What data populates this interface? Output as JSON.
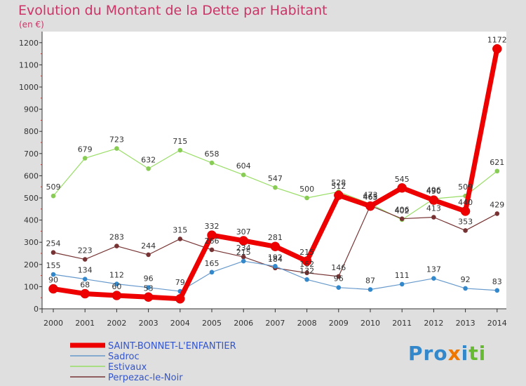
{
  "chart_data": {
    "type": "line",
    "title": "Evolution du Montant de la Dette par Habitant",
    "subtitle": "(en €)",
    "categories": [
      "2000",
      "2001",
      "2002",
      "2003",
      "2004",
      "2005",
      "2006",
      "2007",
      "2008",
      "2009",
      "2010",
      "2011",
      "2012",
      "2013",
      "2014"
    ],
    "y_ticks": [
      "0",
      "100",
      "200",
      "300",
      "400",
      "500",
      "600",
      "700",
      "800",
      "900",
      "1000",
      "1100",
      "1200"
    ],
    "ylim": [
      0,
      1250
    ],
    "grid": false,
    "legend_position": "bottom-left",
    "series": [
      {
        "name": "Estivaux",
        "color": "#99dd66",
        "point_color": "#88cc55",
        "values": [
          509,
          679,
          723,
          632,
          715,
          658,
          604,
          547,
          500,
          528,
          473,
          402,
          496,
          509,
          621
        ],
        "labels": [
          "509",
          "679",
          "723",
          "632",
          "715",
          "658",
          "604",
          "547",
          "500",
          "528",
          "473",
          "402",
          "496",
          "509",
          "621"
        ]
      },
      {
        "name": "Perpezac-le-Noir",
        "color": "#773333",
        "point_color": "#773333",
        "values": [
          254,
          223,
          283,
          244,
          315,
          266,
          234,
          184,
          162,
          146,
          465,
          406,
          413,
          353,
          429
        ],
        "labels": [
          "254",
          "223",
          "283",
          "244",
          "315",
          "266",
          "234",
          "184",
          "162",
          "146",
          "465",
          "406",
          "413",
          "353",
          "429"
        ]
      },
      {
        "name": "Sadroc",
        "color": "#6699cc",
        "point_color": "#3388cc",
        "values": [
          155,
          134,
          112,
          96,
          79,
          165,
          215,
          192,
          132,
          96,
          87,
          111,
          137,
          92,
          83
        ],
        "labels": [
          "155",
          "134",
          "112",
          "96",
          "79",
          "165",
          "215",
          "192",
          "132",
          "96",
          "87",
          "111",
          "137",
          "92",
          "83"
        ]
      },
      {
        "name": "SAINT-BONNET-L'ENFANTIER",
        "color": "#ee0000",
        "point_color": "#ee0000",
        "values": [
          90,
          68,
          60,
          53,
          45,
          332,
          307,
          281,
          215,
          512,
          463,
          545,
          490,
          440,
          1172
        ],
        "labels": [
          "90",
          "68",
          "60",
          "53",
          "",
          "332",
          "307",
          "281",
          "215",
          "512",
          "463",
          "545",
          "490",
          "440",
          "1172"
        ]
      }
    ],
    "legend_order": [
      "SAINT-BONNET-L'ENFANTIER",
      "Sadroc",
      "Estivaux",
      "Perpezac-le-Noir"
    ]
  },
  "colors": {
    "background": "#dfdfdf",
    "plot_background": "#ffffff",
    "title": "#cc3366",
    "legend_text": "#3355cc",
    "axis": "#333333",
    "tick_mark": "#cc3333"
  },
  "logo": {
    "text": "Proxiti"
  }
}
